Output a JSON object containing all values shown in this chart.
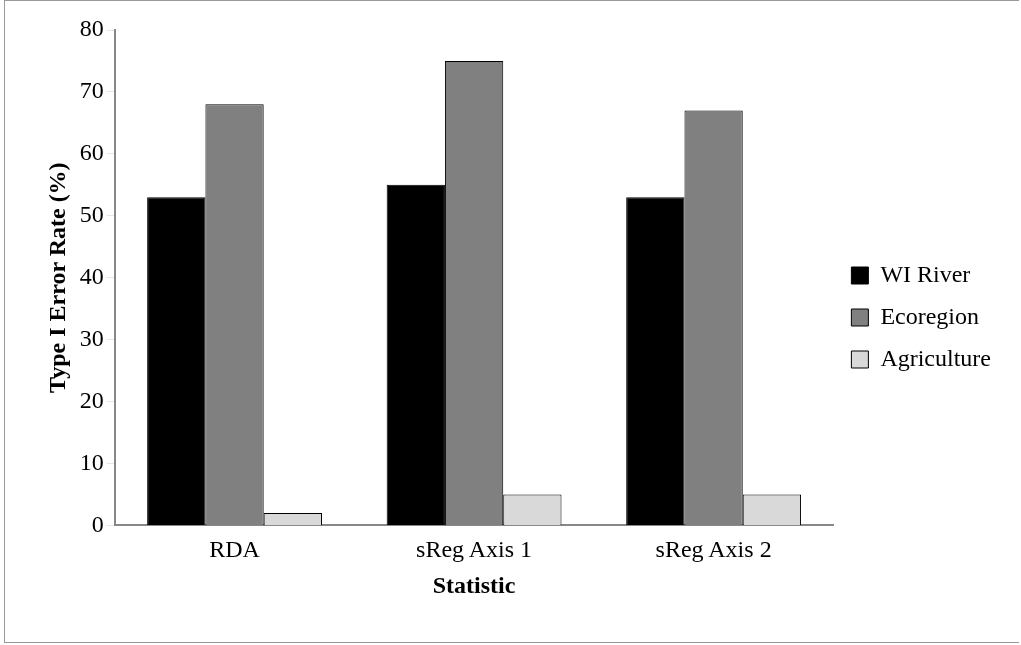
{
  "chart_data": {
    "type": "bar",
    "xlabel": "Statistic",
    "ylabel": "Type I Error Rate (%)",
    "categories": [
      "RDA",
      "sReg Axis 1",
      "sReg Axis 2"
    ],
    "series": [
      {
        "name": "WI River",
        "color": "#000000",
        "values": [
          53,
          55,
          53
        ]
      },
      {
        "name": "Ecoregion",
        "color": "#808080",
        "values": [
          68,
          75,
          67
        ]
      },
      {
        "name": "Agriculture",
        "color": "#d9d9d9",
        "values": [
          2,
          5,
          5
        ]
      }
    ],
    "ylim": [
      0,
      80
    ],
    "yticks": [
      0,
      10,
      20,
      30,
      40,
      50,
      60,
      70,
      80
    ],
    "grid": false,
    "legend": "right"
  }
}
